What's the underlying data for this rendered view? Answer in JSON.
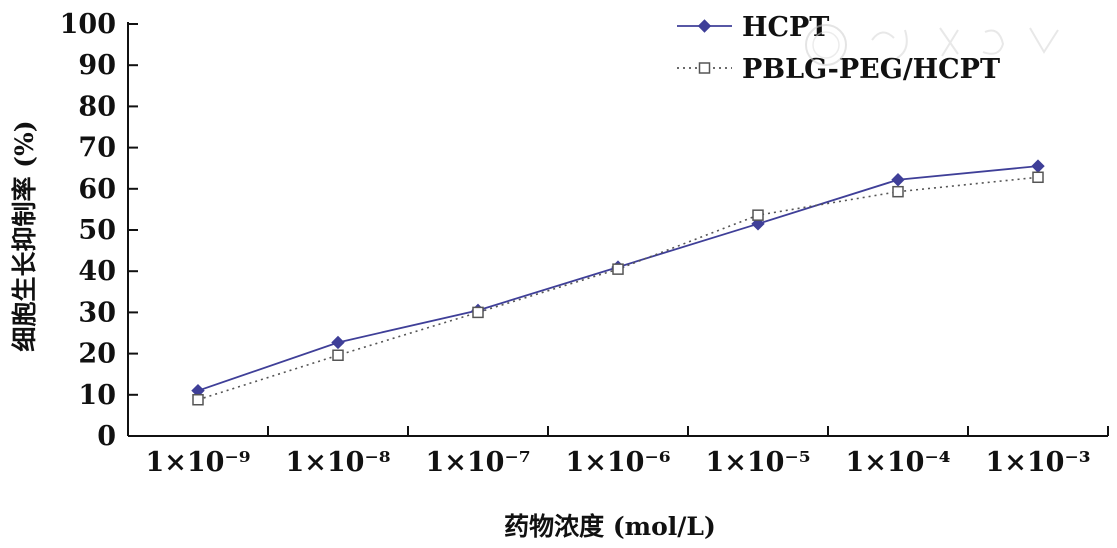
{
  "chart_data": {
    "type": "line",
    "x": [
      "1×10⁻⁹",
      "1×10⁻⁸",
      "1×10⁻⁷",
      "1×10⁻⁶",
      "1×10⁻⁵",
      "1×10⁻⁴",
      "1×10⁻³"
    ],
    "series": [
      {
        "name": "HCPT",
        "values": [
          11,
          22.7,
          30.5,
          41,
          51.5,
          62.2,
          65.5
        ],
        "color": "#3f3f98",
        "marker": "filled-diamond",
        "line_style": "solid"
      },
      {
        "name": "PBLG-PEG/HCPT",
        "values": [
          8.8,
          19.6,
          30,
          40.5,
          53.6,
          59.3,
          62.8
        ],
        "color": "#555555",
        "marker": "open-square",
        "line_style": "dotted"
      }
    ],
    "title": "",
    "xlabel": "药物浓度 (mol/L)",
    "ylabel": "细胞生长抑制率 (%)",
    "ylim": [
      0,
      100
    ],
    "yticks": [
      0,
      10,
      20,
      30,
      40,
      50,
      60,
      70,
      80,
      90,
      100
    ],
    "grid": false,
    "legend_position": "top-right"
  }
}
